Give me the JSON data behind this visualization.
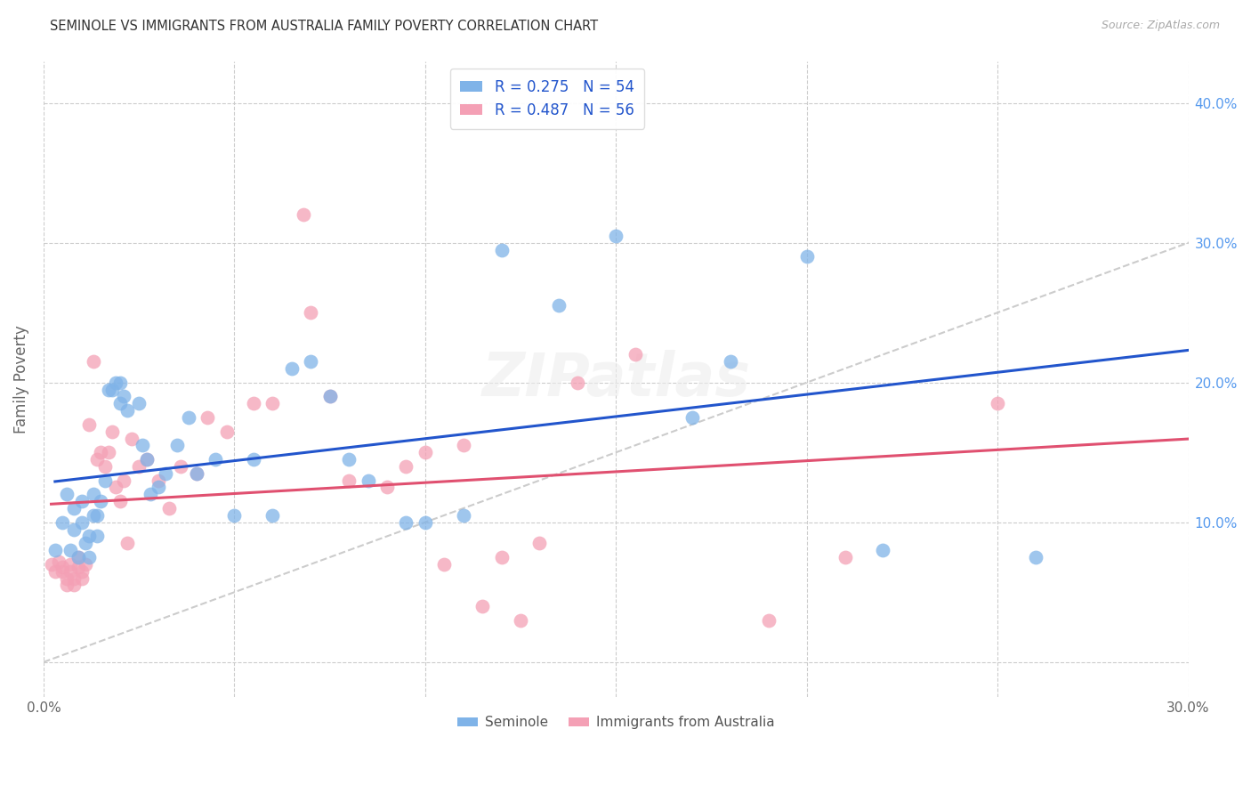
{
  "title": "SEMINOLE VS IMMIGRANTS FROM AUSTRALIA FAMILY POVERTY CORRELATION CHART",
  "source": "Source: ZipAtlas.com",
  "ylabel": "Family Poverty",
  "xlim": [
    0.0,
    0.3
  ],
  "ylim": [
    -0.025,
    0.43
  ],
  "seminole_R": 0.275,
  "seminole_N": 54,
  "australia_R": 0.487,
  "australia_N": 56,
  "seminole_color": "#7fb3e8",
  "australia_color": "#f4a0b5",
  "trendline_seminole_color": "#2255cc",
  "trendline_australia_color": "#e05070",
  "diagonal_color": "#cccccc",
  "seminole_x": [
    0.003,
    0.005,
    0.006,
    0.007,
    0.008,
    0.008,
    0.009,
    0.01,
    0.01,
    0.011,
    0.012,
    0.012,
    0.013,
    0.013,
    0.014,
    0.014,
    0.015,
    0.016,
    0.017,
    0.018,
    0.019,
    0.02,
    0.02,
    0.021,
    0.022,
    0.025,
    0.026,
    0.027,
    0.028,
    0.03,
    0.032,
    0.035,
    0.038,
    0.04,
    0.045,
    0.05,
    0.055,
    0.06,
    0.065,
    0.07,
    0.075,
    0.08,
    0.085,
    0.095,
    0.1,
    0.11,
    0.12,
    0.135,
    0.15,
    0.17,
    0.18,
    0.2,
    0.22,
    0.26
  ],
  "seminole_y": [
    0.08,
    0.1,
    0.12,
    0.08,
    0.095,
    0.11,
    0.075,
    0.1,
    0.115,
    0.085,
    0.075,
    0.09,
    0.105,
    0.12,
    0.09,
    0.105,
    0.115,
    0.13,
    0.195,
    0.195,
    0.2,
    0.2,
    0.185,
    0.19,
    0.18,
    0.185,
    0.155,
    0.145,
    0.12,
    0.125,
    0.135,
    0.155,
    0.175,
    0.135,
    0.145,
    0.105,
    0.145,
    0.105,
    0.21,
    0.215,
    0.19,
    0.145,
    0.13,
    0.1,
    0.1,
    0.105,
    0.295,
    0.255,
    0.305,
    0.175,
    0.215,
    0.29,
    0.08,
    0.075
  ],
  "australia_x": [
    0.002,
    0.003,
    0.004,
    0.005,
    0.005,
    0.006,
    0.006,
    0.007,
    0.007,
    0.008,
    0.008,
    0.009,
    0.009,
    0.01,
    0.01,
    0.011,
    0.012,
    0.013,
    0.014,
    0.015,
    0.016,
    0.017,
    0.018,
    0.019,
    0.02,
    0.021,
    0.022,
    0.023,
    0.025,
    0.027,
    0.03,
    0.033,
    0.036,
    0.04,
    0.043,
    0.048,
    0.055,
    0.06,
    0.068,
    0.07,
    0.075,
    0.08,
    0.09,
    0.095,
    0.1,
    0.105,
    0.11,
    0.115,
    0.12,
    0.125,
    0.13,
    0.14,
    0.155,
    0.19,
    0.21,
    0.25
  ],
  "australia_y": [
    0.07,
    0.065,
    0.072,
    0.065,
    0.068,
    0.055,
    0.06,
    0.065,
    0.07,
    0.055,
    0.06,
    0.068,
    0.075,
    0.06,
    0.065,
    0.07,
    0.17,
    0.215,
    0.145,
    0.15,
    0.14,
    0.15,
    0.165,
    0.125,
    0.115,
    0.13,
    0.085,
    0.16,
    0.14,
    0.145,
    0.13,
    0.11,
    0.14,
    0.135,
    0.175,
    0.165,
    0.185,
    0.185,
    0.32,
    0.25,
    0.19,
    0.13,
    0.125,
    0.14,
    0.15,
    0.07,
    0.155,
    0.04,
    0.075,
    0.03,
    0.085,
    0.2,
    0.22,
    0.03,
    0.075,
    0.185
  ]
}
